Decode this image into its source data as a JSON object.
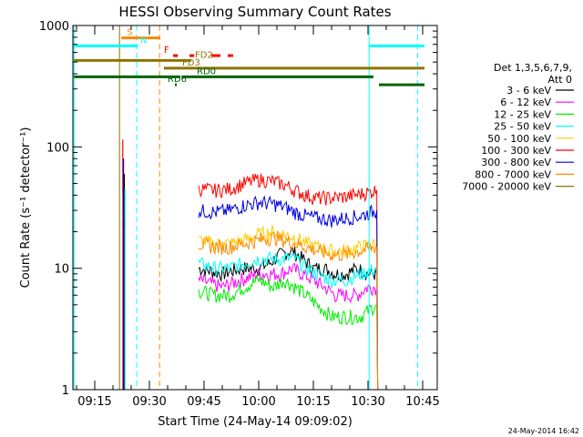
{
  "chart_data": {
    "type": "line",
    "title": "HESSI Observing Summary Count Rates",
    "xlabel": "Start Time (24-May-14 09:09:02)",
    "ylabel": "Count Rate (s⁻¹ detector⁻¹)",
    "yscale": "log",
    "ylim": [
      1,
      1000
    ],
    "xlim_min": [
      549,
      649
    ],
    "xticks": [
      {
        "min": 555,
        "label": "09:15"
      },
      {
        "min": 570,
        "label": "09:30"
      },
      {
        "min": 585,
        "label": "09:45"
      },
      {
        "min": 600,
        "label": "10:00"
      },
      {
        "min": 615,
        "label": "10:15"
      },
      {
        "min": 630,
        "label": "10:30"
      },
      {
        "min": 645,
        "label": "10:45"
      }
    ],
    "yticks": [
      {
        "value": 1,
        "label": "1"
      },
      {
        "value": 10,
        "label": "10"
      },
      {
        "value": 100,
        "label": "100"
      },
      {
        "value": 1000,
        "label": "1000"
      }
    ],
    "legend": {
      "title_lines": [
        "Det 1,3,5,6,7,9,",
        "Att 0"
      ],
      "entries": [
        {
          "name": "3 - 6 keV",
          "color": "#000000"
        },
        {
          "name": "6 - 12 keV",
          "color": "#ff00ff"
        },
        {
          "name": "12 - 25 keV",
          "color": "#00ee00"
        },
        {
          "name": "25 - 50 keV",
          "color": "#00ffff"
        },
        {
          "name": "50 - 100 keV",
          "color": "#ffcc00"
        },
        {
          "name": "100 - 300 keV",
          "color": "#ff0000"
        },
        {
          "name": "300 - 800 keV",
          "color": "#0000dd"
        },
        {
          "name": "800 - 7000 keV",
          "color": "#ff8800"
        },
        {
          "name": "7000 - 20000 keV",
          "color": "#8b7500"
        }
      ]
    },
    "series": [
      {
        "name": "3 - 6 keV",
        "color": "#000000",
        "x": [
          583.5,
          590,
          595,
          600,
          603,
          606,
          609,
          612,
          615,
          618,
          621,
          624,
          627,
          630,
          632.4
        ],
        "y": [
          10,
          9,
          10,
          10,
          11,
          13,
          14,
          12,
          10,
          10,
          9,
          9,
          10,
          9,
          9
        ]
      },
      {
        "name": "6 - 12 keV",
        "color": "#ff00ff",
        "x": [
          583.5,
          590,
          595,
          600,
          603,
          606,
          609,
          612,
          615,
          618,
          621,
          624,
          627,
          630,
          632.4
        ],
        "y": [
          8,
          7,
          8,
          9,
          9,
          9,
          10,
          9,
          8,
          7,
          6,
          6,
          6,
          7,
          7
        ]
      },
      {
        "name": "12 - 25 keV",
        "color": "#00ee00",
        "x": [
          583.5,
          588,
          592,
          596,
          600,
          604,
          607,
          610,
          613,
          616,
          620,
          624,
          628,
          632.4
        ],
        "y": [
          6.5,
          6,
          6,
          7,
          8,
          7,
          8,
          7,
          6,
          5,
          4,
          4,
          4,
          5
        ]
      },
      {
        "name": "25 - 50 keV",
        "color": "#00ffff",
        "x": [
          583.5,
          588,
          592,
          596,
          600,
          604,
          607,
          610,
          613,
          616,
          620,
          624,
          628,
          632.4
        ],
        "y": [
          11,
          10,
          10,
          11,
          12,
          12,
          12,
          12,
          10,
          9,
          8,
          8,
          9,
          10
        ]
      },
      {
        "name": "50 - 100 keV",
        "color": "#ffcc00",
        "x": [
          583.5,
          588,
          592,
          596,
          600,
          604,
          607,
          610,
          613,
          616,
          620,
          624,
          628,
          632.4
        ],
        "y": [
          17,
          16,
          16,
          17,
          19,
          20,
          19,
          18,
          16,
          15,
          14,
          14,
          15,
          16
        ]
      },
      {
        "name": "100 - 300 keV",
        "color": "#ff0000",
        "x": [
          583.5,
          588,
          592,
          596,
          600,
          604,
          607,
          610,
          613,
          616,
          620,
          624,
          628,
          632.4
        ],
        "y": [
          45,
          44,
          45,
          50,
          54,
          52,
          49,
          44,
          40,
          38,
          38,
          39,
          41,
          44
        ]
      },
      {
        "name": "300 - 800 keV",
        "color": "#0000dd",
        "x": [
          583.5,
          588,
          592,
          596,
          600,
          604,
          607,
          610,
          613,
          616,
          620,
          624,
          628,
          632.4
        ],
        "y": [
          30,
          29,
          30,
          33,
          35,
          34,
          32,
          29,
          27,
          26,
          25,
          26,
          27,
          30
        ]
      },
      {
        "name": "800 - 7000 keV",
        "color": "#ff8800",
        "x": [
          583.5,
          588,
          592,
          596,
          600,
          604,
          607,
          610,
          613,
          616,
          620,
          624,
          628,
          632.4
        ],
        "y": [
          16,
          15,
          15,
          16,
          17,
          18,
          17,
          16,
          15,
          14,
          13,
          13,
          14,
          15
        ]
      }
    ],
    "spike": {
      "x": 562.7,
      "values": [
        {
          "color": "#ff0000",
          "y": [
            40,
            115
          ]
        },
        {
          "color": "#0000dd",
          "y": [
            30,
            80
          ]
        },
        {
          "color": "#000000",
          "y": [
            22,
            60
          ]
        },
        {
          "color": "#00ffff",
          "y": [
            25,
            45
          ]
        }
      ]
    },
    "vertical_markers": [
      {
        "min": 549.3,
        "color": "#00ffff",
        "style": "solid"
      },
      {
        "min": 561.8,
        "color": "#8b7500",
        "style": "solid"
      },
      {
        "min": 566.5,
        "color": "#00ffff",
        "style": "dashed"
      },
      {
        "min": 572.8,
        "color": "#ff8800",
        "style": "dashed"
      },
      {
        "min": 630.3,
        "color": "#00ffff",
        "style": "solid"
      },
      {
        "min": 643.6,
        "color": "#00ffff",
        "style": "dashed"
      }
    ],
    "flag_bars": [
      {
        "label": "S",
        "color": "#ff8800",
        "segments": [
          [
            562.3,
            573.0
          ]
        ],
        "y": 790,
        "label_at": 563.8
      },
      {
        "label": "N",
        "color": "#00ffff",
        "segments": [
          [
            549.3,
            566.8
          ],
          [
            630.3,
            645.5
          ]
        ],
        "y": 680,
        "label_at": 567.5
      },
      {
        "label": "F",
        "color": "#ff0000",
        "segments": [
          [
            576.5,
            577.8
          ],
          [
            581.0,
            582.3
          ],
          [
            587.0,
            589.5
          ],
          [
            591.5,
            593.0
          ]
        ],
        "y": 565,
        "label_at": 574.0
      },
      {
        "label": "FD2",
        "color": "#8b7500",
        "segments": [
          [
            549.3,
            581.5
          ]
        ],
        "y": 515,
        "label_at": 582.5
      },
      {
        "label": "FD3",
        "color": "#8b7500",
        "segments": [
          [
            574.0,
            645.5
          ]
        ],
        "y": 445,
        "label_at": 579.0
      },
      {
        "label": "RD0",
        "color": "#006400",
        "segments": [
          [
            549.3,
            578.5
          ],
          [
            578.8,
            631.5
          ]
        ],
        "y": 378,
        "label_at": 583.0
      },
      {
        "label": "RD6",
        "color": "#006400",
        "segments": [
          [
            577.0,
            577.5
          ],
          [
            633.0,
            645.5
          ]
        ],
        "y": 325,
        "label_at": 575.0
      }
    ],
    "grid": false,
    "legend_position": "right"
  },
  "footer": {
    "timestamp": "24-May-2014 16:42"
  }
}
